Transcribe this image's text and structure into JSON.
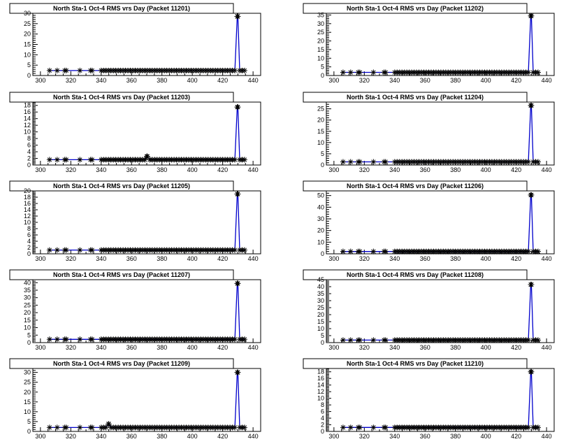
{
  "chart_data": [
    {
      "type": "line",
      "title": "North Sta-1 Oct-4 RMS vrs Day (Packet 11201)",
      "xlabel": "",
      "ylabel": "",
      "xlim": [
        295,
        445
      ],
      "ylim": [
        0,
        30
      ],
      "xticks": [
        300,
        320,
        340,
        360,
        380,
        400,
        420,
        440
      ],
      "yticks": [
        0,
        5,
        10,
        15,
        20,
        25,
        30
      ],
      "baseline": 2.4,
      "spike": {
        "x": 430,
        "y": 28.5
      },
      "outliers": [],
      "line_color": "#0000cc",
      "marker": "star"
    },
    {
      "type": "line",
      "title": "North Sta-1 Oct-4 RMS vrs Day (Packet 11202)",
      "xlabel": "",
      "ylabel": "",
      "xlim": [
        295,
        445
      ],
      "ylim": [
        0,
        36
      ],
      "xticks": [
        300,
        320,
        340,
        360,
        380,
        400,
        420,
        440
      ],
      "yticks": [
        0,
        5,
        10,
        15,
        20,
        25,
        30,
        35
      ],
      "baseline": 1.8,
      "spike": {
        "x": 430,
        "y": 34.5
      },
      "outliers": [],
      "line_color": "#0000cc",
      "marker": "star"
    },
    {
      "type": "line",
      "title": "North Sta-1 Oct-4 RMS vrs Day (Packet 11203)",
      "xlabel": "",
      "ylabel": "",
      "xlim": [
        295,
        445
      ],
      "ylim": [
        0,
        19
      ],
      "xticks": [
        300,
        320,
        340,
        360,
        380,
        400,
        420,
        440
      ],
      "yticks": [
        0,
        2,
        4,
        6,
        8,
        10,
        12,
        14,
        16,
        18
      ],
      "baseline": 1.6,
      "spike": {
        "x": 430,
        "y": 17.5
      },
      "outliers": [
        {
          "x": 370,
          "y": 2.6
        }
      ],
      "line_color": "#0000cc",
      "marker": "star"
    },
    {
      "type": "line",
      "title": "North Sta-1 Oct-4 RMS vrs Day (Packet 11204)",
      "xlabel": "",
      "ylabel": "",
      "xlim": [
        295,
        445
      ],
      "ylim": [
        0,
        28
      ],
      "xticks": [
        300,
        320,
        340,
        360,
        380,
        400,
        420,
        440
      ],
      "yticks": [
        0,
        5,
        10,
        15,
        20,
        25
      ],
      "baseline": 1.4,
      "spike": {
        "x": 430,
        "y": 26.5
      },
      "outliers": [],
      "line_color": "#0000cc",
      "marker": "star"
    },
    {
      "type": "line",
      "title": "North Sta-1 Oct-4 RMS vrs Day (Packet 11205)",
      "xlabel": "",
      "ylabel": "",
      "xlim": [
        295,
        445
      ],
      "ylim": [
        0,
        20
      ],
      "xticks": [
        300,
        320,
        340,
        360,
        380,
        400,
        420,
        440
      ],
      "yticks": [
        0,
        2,
        4,
        6,
        8,
        10,
        12,
        14,
        16,
        18,
        20
      ],
      "baseline": 1.2,
      "spike": {
        "x": 430,
        "y": 19
      },
      "outliers": [],
      "line_color": "#0000cc",
      "marker": "star"
    },
    {
      "type": "line",
      "title": "North Sta-1 Oct-4 RMS vrs Day (Packet 11206)",
      "xlabel": "",
      "ylabel": "",
      "xlim": [
        295,
        445
      ],
      "ylim": [
        0,
        54
      ],
      "xticks": [
        300,
        320,
        340,
        360,
        380,
        400,
        420,
        440
      ],
      "yticks": [
        0,
        10,
        20,
        30,
        40,
        50
      ],
      "baseline": 2.0,
      "spike": {
        "x": 430,
        "y": 50.5
      },
      "outliers": [],
      "line_color": "#0000cc",
      "marker": "star"
    },
    {
      "type": "line",
      "title": "North Sta-1 Oct-4 RMS vrs Day (Packet 11207)",
      "xlabel": "",
      "ylabel": "",
      "xlim": [
        295,
        445
      ],
      "ylim": [
        0,
        42
      ],
      "xticks": [
        300,
        320,
        340,
        360,
        380,
        400,
        420,
        440
      ],
      "yticks": [
        0,
        5,
        10,
        15,
        20,
        25,
        30,
        35,
        40
      ],
      "baseline": 2.2,
      "spike": {
        "x": 430,
        "y": 39.5
      },
      "outliers": [],
      "line_color": "#0000cc",
      "marker": "star"
    },
    {
      "type": "line",
      "title": "North Sta-1 Oct-4 RMS vrs Day (Packet 11208)",
      "xlabel": "",
      "ylabel": "",
      "xlim": [
        295,
        445
      ],
      "ylim": [
        0,
        45
      ],
      "xticks": [
        300,
        320,
        340,
        360,
        380,
        400,
        420,
        440
      ],
      "yticks": [
        0,
        5,
        10,
        15,
        20,
        25,
        30,
        35,
        40,
        45
      ],
      "baseline": 1.8,
      "spike": {
        "x": 430,
        "y": 41.5
      },
      "outliers": [],
      "line_color": "#0000cc",
      "marker": "star"
    },
    {
      "type": "line",
      "title": "North Sta-1 Oct-4 RMS vrs Day (Packet 11209)",
      "xlabel": "",
      "ylabel": "",
      "xlim": [
        295,
        445
      ],
      "ylim": [
        0,
        32
      ],
      "xticks": [
        300,
        320,
        340,
        360,
        380,
        400,
        420,
        440
      ],
      "yticks": [
        0,
        5,
        10,
        15,
        20,
        25,
        30
      ],
      "baseline": 2.0,
      "spike": {
        "x": 430,
        "y": 30
      },
      "outliers": [
        {
          "x": 345,
          "y": 3.8
        }
      ],
      "line_color": "#0000cc",
      "marker": "star"
    },
    {
      "type": "line",
      "title": "North Sta-1 Oct-4 RMS vrs Day (Packet 11210)",
      "xlabel": "",
      "ylabel": "",
      "xlim": [
        295,
        445
      ],
      "ylim": [
        0,
        19
      ],
      "xticks": [
        300,
        320,
        340,
        360,
        380,
        400,
        420,
        440
      ],
      "yticks": [
        0,
        2,
        4,
        6,
        8,
        10,
        12,
        14,
        16,
        18
      ],
      "baseline": 1.2,
      "spike": {
        "x": 430,
        "y": 18
      },
      "outliers": [],
      "line_color": "#0000cc",
      "marker": "star"
    }
  ]
}
